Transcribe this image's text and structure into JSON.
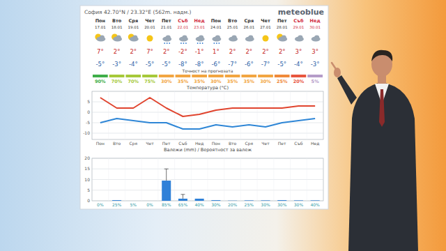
{
  "header": {
    "title": "София  42.70°N / 23.32°E (562m. надм.)",
    "brand": "meteoblue"
  },
  "forecast_table": {
    "weekdays": [
      "Пон",
      "Вто",
      "Сря",
      "Чет",
      "Пет",
      "Съб",
      "Нед",
      "Пон",
      "Вто",
      "Сря",
      "Чет",
      "Пет",
      "Съб",
      "Нед"
    ],
    "dates": [
      "17.01",
      "18.01",
      "19.01",
      "20.01",
      "21.01",
      "22.01",
      "23.01",
      "24.01",
      "25.01",
      "26.01",
      "27.01",
      "28.01",
      "29.01",
      "30.01"
    ],
    "day_colors": [
      "#333333",
      "#333333",
      "#333333",
      "#333333",
      "#333333",
      "#d0283c",
      "#d0283c",
      "#333333",
      "#333333",
      "#333333",
      "#333333",
      "#333333",
      "#d0283c",
      "#d0283c"
    ],
    "max_temps": [
      "7°",
      "2°",
      "2°",
      "7°",
      "2°",
      "-2°",
      "-1°",
      "1°",
      "2°",
      "2°",
      "2°",
      "2°",
      "3°",
      "3°"
    ],
    "min_temps": [
      "-5°",
      "-3°",
      "-4°",
      "-5°",
      "-5°",
      "-8°",
      "-8°",
      "-6°",
      "-7°",
      "-6°",
      "-7°",
      "-5°",
      "-4°",
      "-3°"
    ],
    "accuracy_title": "Точност на прогнозата",
    "accuracy": [
      "90%",
      "70%",
      "70%",
      "75%",
      "30%",
      "35%",
      "35%",
      "30%",
      "35%",
      "35%",
      "30%",
      "25%",
      "20%",
      "5%"
    ],
    "accuracy_colors": [
      "#3fae49",
      "#a6c93a",
      "#a6c93a",
      "#a6c93a",
      "#f2a541",
      "#f2a541",
      "#f2a541",
      "#f2a541",
      "#f2a541",
      "#f2a541",
      "#f2a541",
      "#f08a3a",
      "#e8553e",
      "#b59cc9"
    ]
  },
  "chart_data": [
    {
      "type": "line",
      "title": "Температура (°C)",
      "categories": [
        "Пон",
        "Вто",
        "Сря",
        "Чет",
        "Пет",
        "Съб",
        "Нед",
        "Пон",
        "Вто",
        "Сря",
        "Чет",
        "Пет",
        "Съб",
        "Нед"
      ],
      "ylim": [
        -13,
        10
      ],
      "yticks": [
        5,
        0,
        -5,
        -10
      ],
      "grid": true,
      "series": [
        {
          "color": "#e0442e",
          "values": [
            7,
            2,
            2,
            7,
            2,
            -2,
            -1,
            1,
            2,
            2,
            2,
            2,
            3,
            3
          ]
        },
        {
          "color": "#2e86d6",
          "values": [
            -5,
            -3,
            -4,
            -5,
            -5,
            -8,
            -8,
            -6,
            -7,
            -6,
            -7,
            -5,
            -4,
            -3
          ]
        }
      ]
    },
    {
      "type": "bar",
      "title": "Валежи (mm) / Вероятност за валеж",
      "categories": [
        "0%",
        "25%",
        "5%",
        "0%",
        "85%",
        "65%",
        "40%",
        "30%",
        "20%",
        "25%",
        "30%",
        "30%",
        "30%",
        "40%"
      ],
      "values": [
        0,
        0.3,
        0,
        0,
        9.5,
        1,
        1,
        0.3,
        0.1,
        0.2,
        0.2,
        0.3,
        0.2,
        0.2
      ],
      "errors": [
        0,
        0,
        0,
        0,
        5.5,
        2,
        0,
        0,
        0,
        0,
        0,
        0,
        0,
        0
      ],
      "color": "#2f80d8",
      "ylim": [
        0,
        20
      ],
      "yticks": [
        0,
        5,
        10,
        15,
        20
      ],
      "grid": true
    }
  ]
}
